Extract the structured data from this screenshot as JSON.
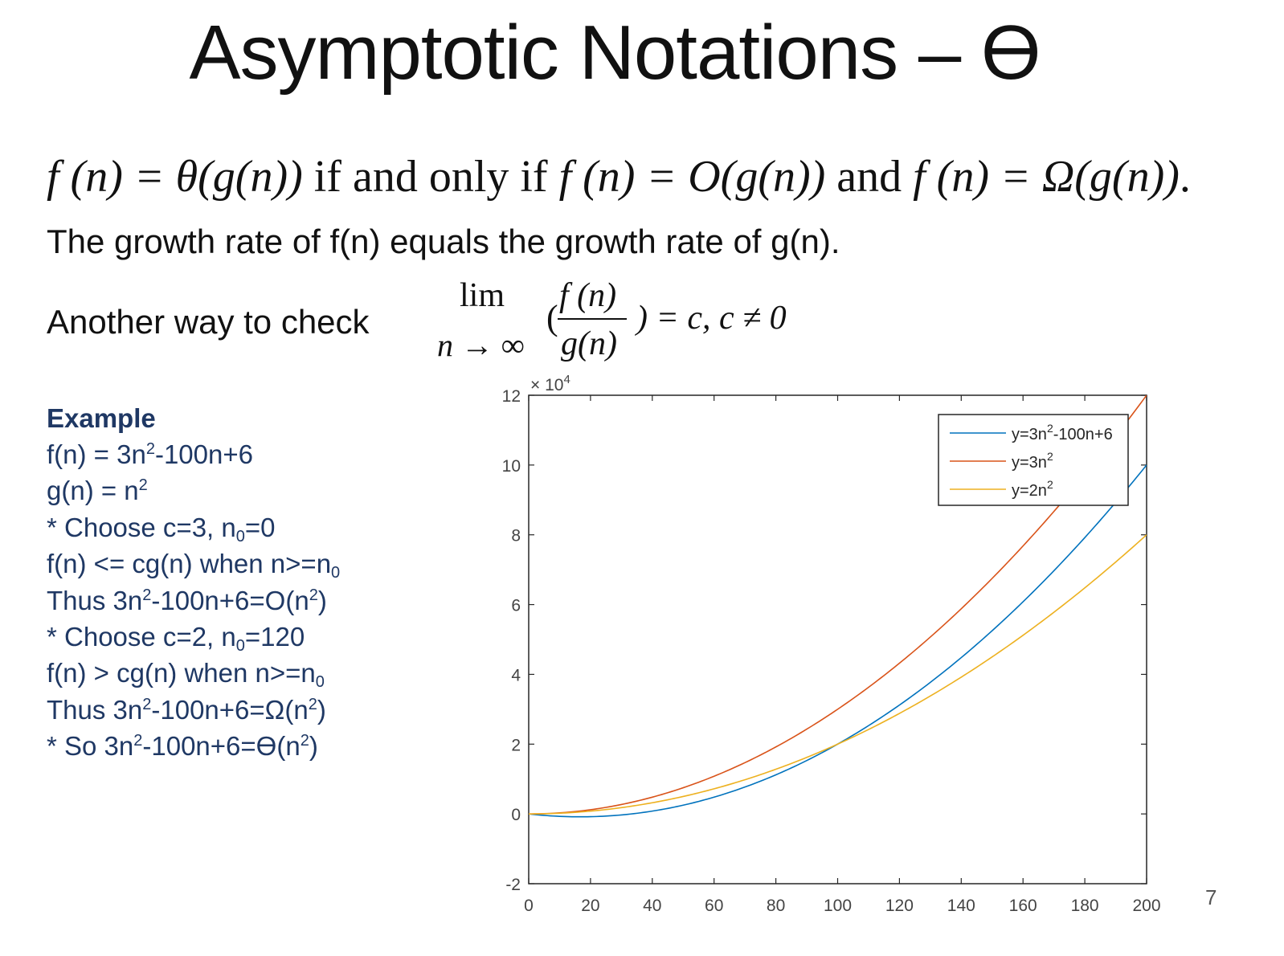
{
  "slide": {
    "title": "Asymptotic Notations – ϴ",
    "page_number": "7"
  },
  "definition": {
    "part1": "f (n) = θ(g(n))",
    "mid1": " if and only if ",
    "part2": "f (n) = O(g(n))",
    "mid2": " and ",
    "part3": "f (n) = Ω(g(n))",
    "end": "."
  },
  "growth_statement": "The growth rate of f(n) equals the growth rate of g(n).",
  "check": {
    "label": "Another way to check",
    "lim": "lim",
    "lim_sub": "n → ∞",
    "open_paren": "(",
    "numerator": "f (n)",
    "denominator": "g(n)",
    "close": ") = c, c ≠ 0"
  },
  "example": {
    "heading": "Example",
    "lines": [
      [
        "f(n) = 3n",
        "2",
        "-100n+6",
        "",
        ""
      ],
      [
        "g(n) = n",
        "2",
        "",
        "",
        ""
      ],
      [
        "* Choose c=3, n",
        "",
        "",
        "0",
        "=0"
      ],
      [
        "f(n) <= cg(n) when n>=n",
        "",
        "",
        "0",
        ""
      ],
      [
        "Thus 3n",
        "2",
        "-100n+6=O(n",
        "2",
        ")"
      ],
      [
        "* Choose c=2, n",
        "",
        "",
        "0",
        "=120"
      ],
      [
        "f(n) > cg(n) when n>=n",
        "",
        "",
        "0",
        ""
      ],
      [
        "Thus 3n",
        "2",
        "-100n+6=Ω(n",
        "2",
        ")"
      ],
      [
        "* So 3n",
        "2",
        "-100n+6=ϴ(n",
        "2",
        ")"
      ]
    ]
  },
  "chart_data": {
    "type": "line",
    "x_range": [
      0,
      200
    ],
    "xlim": [
      0,
      200
    ],
    "ylim": [
      -2,
      12
    ],
    "y_multiplier": "× 10",
    "y_multiplier_exp": "4",
    "xticks": [
      0,
      20,
      40,
      60,
      80,
      100,
      120,
      140,
      160,
      180,
      200
    ],
    "yticks": [
      -2,
      0,
      2,
      4,
      6,
      8,
      10,
      12
    ],
    "legend_position": "top-right",
    "grid": false,
    "series": [
      {
        "name": "y=3n²-100n+6",
        "label_base": "y=3n",
        "label_exp": "2",
        "label_rest": "-100n+6",
        "coef": [
          3,
          -100,
          6
        ],
        "color": "#0072bd"
      },
      {
        "name": "y=3n²",
        "label_base": "y=3n",
        "label_exp": "2",
        "label_rest": "",
        "coef": [
          3,
          0,
          0
        ],
        "color": "#d95319"
      },
      {
        "name": "y=2n²",
        "label_base": "y=2n",
        "label_exp": "2",
        "label_rest": "",
        "coef": [
          2,
          0,
          0
        ],
        "color": "#edb120"
      }
    ]
  }
}
